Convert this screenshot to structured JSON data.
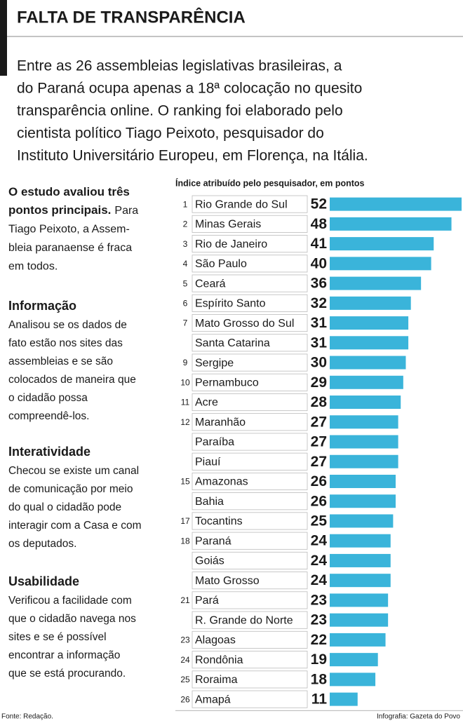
{
  "header": {
    "title": "FALTA DE TRANSPARÊNCIA",
    "intro": [
      "Entre as 26 assembleias legislativas brasileiras, a",
      "do Paraná ocupa apenas a 18ª colocação no quesito",
      "transparência online. O ranking foi elaborado pelo",
      "cientista político Tiago Peixoto, pesquisador do",
      "Instituto Universitário Europeu, em Florença, na Itália."
    ]
  },
  "sidebar": {
    "lead": {
      "title_lines": [
        "O estudo avaliou três",
        "pontos principais."
      ],
      "lines": [
        "Para",
        "Tiago Peixoto, a Assem-",
        "bleia paranaense é fraca",
        "em todos."
      ]
    },
    "sections": [
      {
        "title": "Informação",
        "lines": [
          "Analisou se os dados de",
          "fato estão nos sites das",
          "assembleias e se são",
          "colocados de maneira que",
          "o cidadão possa",
          "compreendê-los."
        ]
      },
      {
        "title": "Interatividade",
        "lines": [
          "Checou se existe um canal",
          "de comunicação por meio",
          "do qual o cidadão pode",
          "interagir com a Casa e com",
          "os deputados."
        ]
      },
      {
        "title": "Usabilidade",
        "lines": [
          "Verificou a facilidade com",
          "que o cidadão navega nos",
          "sites e se é possível",
          "encontrar a informação",
          "que se está procurando."
        ]
      }
    ]
  },
  "chart_data": {
    "type": "bar",
    "orientation": "horizontal",
    "subtitle": "Índice atribuído pelo pesquisador, em pontos",
    "color": "#3ab4da",
    "ranks": [
      1,
      2,
      3,
      4,
      5,
      6,
      7,
      null,
      9,
      10,
      11,
      12,
      null,
      null,
      15,
      null,
      17,
      18,
      null,
      null,
      21,
      null,
      23,
      24,
      25,
      26
    ],
    "categories": [
      "Rio Grande do Sul",
      "Minas Gerais",
      "Rio de Janeiro",
      "São Paulo",
      "Ceará",
      "Espírito Santo",
      "Mato Grosso do Sul",
      "Santa Catarina",
      "Sergipe",
      "Pernambuco",
      "Acre",
      "Maranhão",
      "Paraíba",
      "Piauí",
      "Amazonas",
      "Bahia",
      "Tocantins",
      "Paraná",
      "Goiás",
      "Mato Grosso",
      "Pará",
      "R. Grande do Norte",
      "Alagoas",
      "Rondônia",
      "Roraima",
      "Amapá"
    ],
    "values": [
      52,
      48,
      41,
      40,
      36,
      32,
      31,
      31,
      30,
      29,
      28,
      27,
      27,
      27,
      26,
      26,
      25,
      24,
      24,
      24,
      23,
      23,
      22,
      19,
      18,
      11
    ]
  },
  "footer": {
    "source": "Fonte: Redação.",
    "credit": "Infografia: Gazeta do Povo"
  }
}
